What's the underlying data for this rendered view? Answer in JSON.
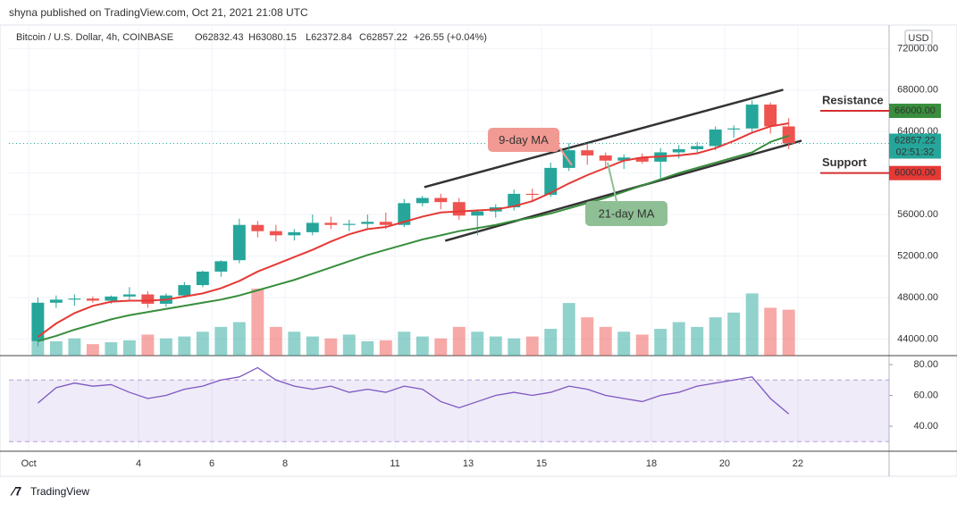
{
  "header": {
    "publisher": "shyna published on TradingView.com, Oct 21, 2021 21:08 UTC",
    "brand": "TradingView"
  },
  "chart_data": {
    "type": "candlestick",
    "legend": {
      "symbol": "Bitcoin / U.S. Dollar, 4h, COINBASE",
      "open": "O62832.43",
      "high": "H63080.15",
      "low": "L62372.84",
      "close": "C62857.22",
      "change": "+26.55 (+0.04%)"
    },
    "currency": "USD",
    "x": [
      1.25,
      1.75,
      2.25,
      2.75,
      3.25,
      3.75,
      4.25,
      4.75,
      5.25,
      5.75,
      6.25,
      6.75,
      7.25,
      7.75,
      8.25,
      8.75,
      9.25,
      9.75,
      10.25,
      10.75,
      11.25,
      11.75,
      12.25,
      12.75,
      13.25,
      13.75,
      14.25,
      14.75,
      15.25,
      15.75,
      16.25,
      16.75,
      17.25,
      17.75,
      18.25,
      18.75,
      19.25,
      19.75,
      20.25,
      20.75,
      21.25,
      21.75
    ],
    "open": [
      43800,
      47500,
      47800,
      47900,
      47700,
      48100,
      48300,
      47400,
      48200,
      49200,
      50500,
      51600,
      55000,
      54400,
      54000,
      54300,
      55200,
      55000,
      55100,
      55300,
      55000,
      57100,
      57600,
      57200,
      55900,
      56300,
      56700,
      58000,
      57900,
      60500,
      62200,
      61700,
      61200,
      61500,
      61100,
      62000,
      62300,
      62600,
      64200,
      64300,
      66600,
      64500
    ],
    "high": [
      48000,
      48200,
      48300,
      48100,
      48200,
      49000,
      48600,
      48400,
      49500,
      50600,
      51600,
      55600,
      55400,
      55000,
      54600,
      56000,
      55800,
      55500,
      56000,
      56200,
      57500,
      57800,
      58000,
      57600,
      56500,
      57000,
      58400,
      58500,
      61000,
      62900,
      62800,
      62000,
      61800,
      61900,
      62400,
      62700,
      63000,
      64500,
      64600,
      67000,
      66800,
      65300
    ],
    "low": [
      43300,
      47000,
      47200,
      47500,
      47400,
      47800,
      47000,
      47100,
      48000,
      49000,
      50000,
      51300,
      53800,
      53400,
      53500,
      54000,
      54600,
      54400,
      54500,
      54600,
      54800,
      56800,
      56500,
      55500,
      54000,
      55700,
      56400,
      57300,
      57700,
      60200,
      60800,
      60500,
      60400,
      60900,
      59300,
      61400,
      61900,
      62200,
      63400,
      64000,
      63800,
      62300
    ],
    "close": [
      47500,
      47800,
      47900,
      47700,
      48100,
      48300,
      47400,
      48200,
      49200,
      50500,
      51500,
      55000,
      54400,
      54000,
      54300,
      55200,
      55000,
      55100,
      55300,
      55000,
      57100,
      57600,
      57200,
      55900,
      56300,
      56700,
      58000,
      57900,
      60500,
      62200,
      61700,
      61200,
      61500,
      61100,
      62000,
      62300,
      62600,
      64200,
      64300,
      66600,
      64500,
      62857
    ],
    "volume": [
      20,
      15,
      18,
      12,
      14,
      16,
      22,
      18,
      20,
      25,
      30,
      35,
      70,
      30,
      25,
      20,
      18,
      22,
      15,
      16,
      25,
      20,
      18,
      30,
      25,
      20,
      18,
      20,
      28,
      55,
      40,
      30,
      25,
      22,
      28,
      35,
      30,
      40,
      45,
      65,
      50,
      48
    ],
    "ma9": [
      44200,
      45500,
      46500,
      47200,
      47600,
      47700,
      47700,
      47800,
      48100,
      48400,
      48900,
      49600,
      50500,
      51200,
      51900,
      52600,
      53400,
      54100,
      54600,
      54800,
      55300,
      55800,
      56200,
      56300,
      56400,
      56500,
      56800,
      57300,
      58100,
      59000,
      59800,
      60500,
      61200,
      61500,
      61600,
      61700,
      61900,
      62400,
      63100,
      63900,
      64500,
      64800
    ],
    "ma21": [
      43800,
      44300,
      44900,
      45400,
      45900,
      46300,
      46600,
      46900,
      47200,
      47500,
      47800,
      48200,
      48700,
      49200,
      49700,
      50300,
      50900,
      51500,
      52100,
      52600,
      53100,
      53600,
      54000,
      54400,
      54700,
      55000,
      55400,
      55700,
      56100,
      56600,
      57100,
      57600,
      58200,
      58800,
      59400,
      60000,
      60500,
      61000,
      61500,
      62000,
      63000,
      63600
    ],
    "rsi": [
      55,
      65,
      68,
      66,
      67,
      62,
      58,
      60,
      64,
      66,
      70,
      72,
      78,
      70,
      66,
      64,
      66,
      62,
      64,
      62,
      66,
      64,
      56,
      52,
      56,
      60,
      62,
      60,
      62,
      66,
      64,
      60,
      58,
      56,
      60,
      62,
      66,
      68,
      70,
      72,
      58,
      48
    ],
    "xlim": [
      0.46,
      24.49
    ],
    "xticks": [
      {
        "value": 1,
        "label": "Oct"
      },
      4,
      6,
      8,
      11,
      13,
      15,
      18,
      20,
      22
    ],
    "ylim": [
      42400,
      74100
    ],
    "yticks": [
      {
        "value": 44000,
        "label": "44000.00"
      },
      {
        "value": 48000,
        "label": "48000.00"
      },
      {
        "value": 52000,
        "label": "52000.00"
      },
      {
        "value": 56000,
        "label": "56000.00"
      },
      {
        "value": 60000,
        "label": "60000.00"
      },
      {
        "value": 64000,
        "label": "64000.00"
      },
      {
        "value": 68000,
        "label": "68000.00"
      },
      {
        "value": 72000,
        "label": "72000.00"
      }
    ],
    "rsi_lim": [
      23.8,
      85.8
    ],
    "rsi_ticks": [
      {
        "value": 40,
        "label": "40.00"
      },
      {
        "value": 60,
        "label": "60.00"
      },
      {
        "value": 80,
        "label": "80.00"
      }
    ],
    "rsi_band": [
      30,
      70
    ],
    "colors": {
      "up": "#26a69a",
      "down": "#ef5350",
      "ma9": "#e53935",
      "ma21": "#388e3c",
      "rsi": "#7e57c2"
    },
    "channel": {
      "upper": {
        "x": [
          11.8,
          21.6
        ],
        "y": [
          58640,
          68030
        ]
      },
      "lower": {
        "x": [
          12.37,
          22.1
        ],
        "y": [
          53475,
          63120
        ]
      }
    },
    "levels": [
      {
        "text": "Resistance",
        "value": 66000,
        "label": "66000.00",
        "box": "#388e3c",
        "text_color": "#b71c1c"
      },
      {
        "text": "Support",
        "value": 60000,
        "label": "60000.00",
        "box": "#e53935",
        "text_color": "#2e7d32"
      }
    ],
    "last": {
      "value": 62857.22,
      "label": "62857.22",
      "countdown": "02:51:32"
    },
    "annotations": [
      {
        "text": "9-day MA",
        "color": "#f19a93"
      },
      {
        "text": "21-day MA",
        "color": "#8fbf94"
      }
    ]
  }
}
